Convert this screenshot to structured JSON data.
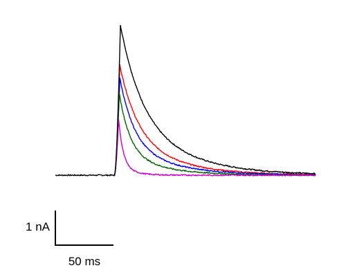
{
  "chart_data": {
    "type": "line",
    "title": "",
    "xlabel": "",
    "ylabel": "",
    "x_unit": "ms",
    "y_unit": "nA",
    "grid": false,
    "legend": "none",
    "onset_ms": 0,
    "xlim": [
      -51,
      173
    ],
    "ylim": [
      -0.1,
      3.6
    ],
    "scale_bar": {
      "x_value": 50,
      "x_label": "50 ms",
      "y_value": 1,
      "y_label": "1 nA"
    },
    "series": [
      {
        "color": "#000000",
        "peak_time_ms": 5,
        "peak": 3.55,
        "tau_fast_ms": 18,
        "frac_fast": 0.55,
        "tau_slow_ms": 45
      },
      {
        "color": "#ff0000",
        "peak_time_ms": 4.5,
        "peak": 2.6,
        "tau_fast_ms": 15,
        "frac_fast": 0.6,
        "tau_slow_ms": 40
      },
      {
        "color": "#0000ff",
        "peak_time_ms": 4.5,
        "peak": 2.3,
        "tau_fast_ms": 12,
        "frac_fast": 0.65,
        "tau_slow_ms": 38
      },
      {
        "color": "#006400",
        "peak_time_ms": 4,
        "peak": 1.95,
        "tau_fast_ms": 9,
        "frac_fast": 0.7,
        "tau_slow_ms": 32
      },
      {
        "color": "#cc00cc",
        "peak_time_ms": 3.5,
        "peak": 1.32,
        "tau_fast_ms": 4,
        "frac_fast": 0.85,
        "tau_slow_ms": 12
      }
    ]
  }
}
